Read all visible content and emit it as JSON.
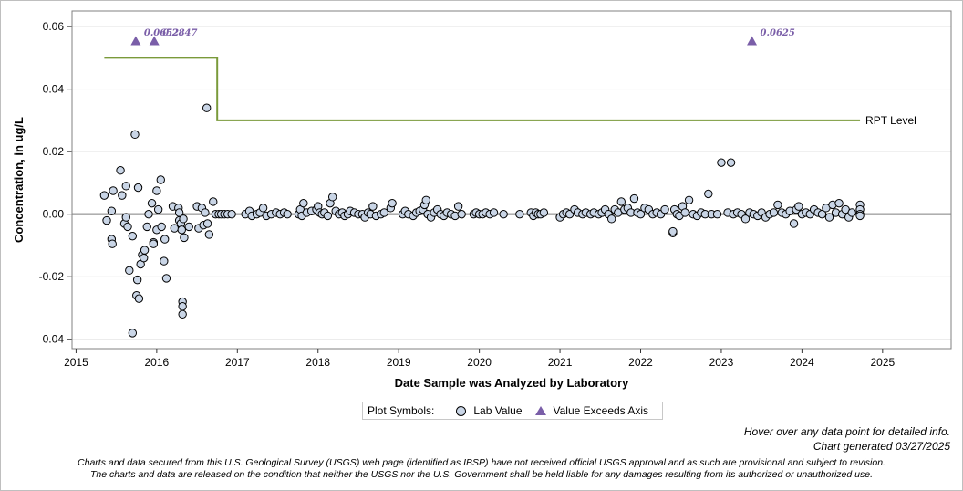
{
  "chart_data": {
    "type": "scatter",
    "xlabel": "Date Sample was Analyzed by Laboratory",
    "ylabel": "Concentration, in ug/L",
    "xlim": [
      2014.95,
      2025.85
    ],
    "ylim": [
      -0.043,
      0.065
    ],
    "x_ticks": [
      "2015",
      "2016",
      "2017",
      "2018",
      "2019",
      "2020",
      "2021",
      "2022",
      "2023",
      "2024",
      "2025"
    ],
    "y_ticks": [
      "0.06",
      "0.04",
      "0.02",
      "0.00",
      "-0.02",
      "-0.04"
    ],
    "y_tick_values": [
      0.06,
      0.04,
      0.02,
      0.0,
      -0.02,
      -0.04
    ],
    "grid": "horizontal",
    "reference_line_y": 0.0,
    "rpt_level": {
      "label": "RPT Level",
      "color": "#7a9a3a",
      "segments": [
        {
          "x": [
            2015.35,
            2016.75
          ],
          "y": 0.05
        },
        {
          "x": [
            2016.75,
            2024.72
          ],
          "y": 0.03
        }
      ]
    },
    "exceeds_axis": {
      "name": "Value Exceeds Axis",
      "color": "#7a5ea8",
      "points": [
        {
          "x": 2015.74,
          "label": "0.0652"
        },
        {
          "x": 2015.97,
          "label": "0.2847"
        },
        {
          "x": 2023.38,
          "label": "0.0625"
        }
      ]
    },
    "lab_values": {
      "name": "Lab Value",
      "color": "#c9d5e6",
      "points": [
        [
          2015.35,
          0.006
        ],
        [
          2015.38,
          -0.002
        ],
        [
          2015.44,
          0.001
        ],
        [
          2015.44,
          -0.008
        ],
        [
          2015.45,
          -0.0095
        ],
        [
          2015.46,
          0.0075
        ],
        [
          2015.55,
          0.014
        ],
        [
          2015.57,
          0.006
        ],
        [
          2015.6,
          -0.003
        ],
        [
          2015.62,
          0.009
        ],
        [
          2015.62,
          -0.001
        ],
        [
          2015.64,
          -0.004
        ],
        [
          2015.66,
          -0.018
        ],
        [
          2015.7,
          -0.038
        ],
        [
          2015.7,
          -0.007
        ],
        [
          2015.73,
          0.0255
        ],
        [
          2015.75,
          -0.026
        ],
        [
          2015.76,
          -0.021
        ],
        [
          2015.77,
          0.0085
        ],
        [
          2015.78,
          -0.027
        ],
        [
          2015.8,
          -0.016
        ],
        [
          2015.82,
          -0.013
        ],
        [
          2015.84,
          -0.014
        ],
        [
          2015.85,
          -0.0115
        ],
        [
          2015.88,
          -0.004
        ],
        [
          2015.9,
          0.0
        ],
        [
          2015.94,
          0.0035
        ],
        [
          2015.96,
          -0.009
        ],
        [
          2015.96,
          -0.0095
        ],
        [
          2016.0,
          0.0075
        ],
        [
          2016.0,
          -0.005
        ],
        [
          2016.02,
          0.0015
        ],
        [
          2016.05,
          0.011
        ],
        [
          2016.06,
          -0.004
        ],
        [
          2016.09,
          -0.015
        ],
        [
          2016.1,
          -0.008
        ],
        [
          2016.12,
          -0.0205
        ],
        [
          2016.2,
          0.0025
        ],
        [
          2016.22,
          -0.0045
        ],
        [
          2016.27,
          0.002
        ],
        [
          2016.28,
          0.0005
        ],
        [
          2016.28,
          -0.002
        ],
        [
          2016.3,
          -0.003
        ],
        [
          2016.31,
          -0.005
        ],
        [
          2016.32,
          -0.028
        ],
        [
          2016.32,
          -0.0295
        ],
        [
          2016.32,
          -0.032
        ],
        [
          2016.33,
          -0.0015
        ],
        [
          2016.34,
          -0.0075
        ],
        [
          2016.4,
          -0.004
        ],
        [
          2016.5,
          0.0025
        ],
        [
          2016.52,
          -0.0045
        ],
        [
          2016.56,
          0.002
        ],
        [
          2016.58,
          -0.0035
        ],
        [
          2016.6,
          0.0005
        ],
        [
          2016.62,
          0.034
        ],
        [
          2016.63,
          -0.003
        ],
        [
          2016.65,
          -0.0065
        ],
        [
          2016.7,
          0.004
        ],
        [
          2016.73,
          0.0
        ],
        [
          2016.77,
          0.0
        ],
        [
          2016.8,
          0.0
        ],
        [
          2016.84,
          0.0
        ],
        [
          2016.88,
          0.0
        ],
        [
          2016.93,
          0.0
        ],
        [
          2017.1,
          0.0
        ],
        [
          2017.15,
          0.001
        ],
        [
          2017.18,
          -0.0005
        ],
        [
          2017.24,
          0.0
        ],
        [
          2017.28,
          0.0005
        ],
        [
          2017.32,
          0.002
        ],
        [
          2017.36,
          -0.0005
        ],
        [
          2017.42,
          0.0
        ],
        [
          2017.48,
          0.0005
        ],
        [
          2017.53,
          0.0
        ],
        [
          2017.58,
          0.0005
        ],
        [
          2017.62,
          0.0
        ],
        [
          2017.76,
          0.0
        ],
        [
          2017.78,
          0.0015
        ],
        [
          2017.8,
          -0.0005
        ],
        [
          2017.82,
          0.0035
        ],
        [
          2017.86,
          0.0005
        ],
        [
          2017.92,
          0.001
        ],
        [
          2017.98,
          0.0015
        ],
        [
          2018.0,
          0.0025
        ],
        [
          2018.02,
          0.0005
        ],
        [
          2018.05,
          0.0
        ],
        [
          2018.08,
          0.0005
        ],
        [
          2018.12,
          -0.0005
        ],
        [
          2018.15,
          0.0035
        ],
        [
          2018.18,
          0.0055
        ],
        [
          2018.22,
          0.001
        ],
        [
          2018.26,
          0.0
        ],
        [
          2018.3,
          0.0005
        ],
        [
          2018.33,
          -0.0005
        ],
        [
          2018.37,
          0.0
        ],
        [
          2018.4,
          0.001
        ],
        [
          2018.45,
          0.0005
        ],
        [
          2018.5,
          0.0
        ],
        [
          2018.55,
          0.0
        ],
        [
          2018.58,
          -0.001
        ],
        [
          2018.62,
          0.0005
        ],
        [
          2018.65,
          0.0
        ],
        [
          2018.68,
          0.0025
        ],
        [
          2018.72,
          -0.0005
        ],
        [
          2018.78,
          0.0
        ],
        [
          2018.82,
          0.0005
        ],
        [
          2018.9,
          0.002
        ],
        [
          2018.92,
          0.0035
        ],
        [
          2019.05,
          0.0
        ],
        [
          2019.08,
          0.001
        ],
        [
          2019.12,
          0.0
        ],
        [
          2019.18,
          -0.0005
        ],
        [
          2019.22,
          0.0005
        ],
        [
          2019.26,
          0.001
        ],
        [
          2019.3,
          0.0015
        ],
        [
          2019.32,
          0.003
        ],
        [
          2019.34,
          0.0045
        ],
        [
          2019.36,
          0.0
        ],
        [
          2019.4,
          -0.001
        ],
        [
          2019.44,
          0.0005
        ],
        [
          2019.48,
          0.0015
        ],
        [
          2019.52,
          0.0
        ],
        [
          2019.56,
          -0.0005
        ],
        [
          2019.6,
          0.0005
        ],
        [
          2019.65,
          0.0
        ],
        [
          2019.7,
          -0.0005
        ],
        [
          2019.74,
          0.0025
        ],
        [
          2019.78,
          0.0
        ],
        [
          2019.93,
          0.0
        ],
        [
          2019.96,
          0.0005
        ],
        [
          2020.0,
          0.0
        ],
        [
          2020.04,
          0.0
        ],
        [
          2020.08,
          0.0005
        ],
        [
          2020.13,
          0.0
        ],
        [
          2020.18,
          0.0005
        ],
        [
          2020.3,
          0.0
        ],
        [
          2020.5,
          0.0
        ],
        [
          2020.64,
          0.0005
        ],
        [
          2020.67,
          -0.0005
        ],
        [
          2020.7,
          0.0005
        ],
        [
          2020.73,
          0.0
        ],
        [
          2020.76,
          0.0
        ],
        [
          2020.8,
          0.0005
        ],
        [
          2021.0,
          -0.001
        ],
        [
          2021.04,
          0.0
        ],
        [
          2021.08,
          0.0005
        ],
        [
          2021.12,
          0.0
        ],
        [
          2021.18,
          0.0015
        ],
        [
          2021.22,
          0.0005
        ],
        [
          2021.28,
          0.0
        ],
        [
          2021.32,
          0.0005
        ],
        [
          2021.38,
          0.0
        ],
        [
          2021.42,
          0.0005
        ],
        [
          2021.48,
          0.0
        ],
        [
          2021.52,
          0.0005
        ],
        [
          2021.56,
          0.0015
        ],
        [
          2021.6,
          0.0
        ],
        [
          2021.64,
          -0.0015
        ],
        [
          2021.68,
          0.0015
        ],
        [
          2021.72,
          0.0005
        ],
        [
          2021.76,
          0.004
        ],
        [
          2021.8,
          0.0015
        ],
        [
          2021.84,
          0.002
        ],
        [
          2021.88,
          0.0005
        ],
        [
          2021.92,
          0.005
        ],
        [
          2021.96,
          0.0005
        ],
        [
          2022.0,
          0.0
        ],
        [
          2022.05,
          0.002
        ],
        [
          2022.1,
          0.0015
        ],
        [
          2022.15,
          0.0
        ],
        [
          2022.2,
          0.0005
        ],
        [
          2022.25,
          0.0
        ],
        [
          2022.3,
          0.0015
        ],
        [
          2022.4,
          -0.006
        ],
        [
          2022.4,
          -0.0055
        ],
        [
          2022.42,
          0.0015
        ],
        [
          2022.45,
          0.0
        ],
        [
          2022.48,
          -0.0005
        ],
        [
          2022.52,
          0.0025
        ],
        [
          2022.55,
          0.0005
        ],
        [
          2022.6,
          0.0045
        ],
        [
          2022.65,
          0.0
        ],
        [
          2022.7,
          -0.0005
        ],
        [
          2022.75,
          0.0005
        ],
        [
          2022.8,
          0.0
        ],
        [
          2022.84,
          0.0065
        ],
        [
          2022.88,
          0.0
        ],
        [
          2022.95,
          0.0
        ],
        [
          2023.0,
          0.0165
        ],
        [
          2023.08,
          0.0005
        ],
        [
          2023.12,
          0.0165
        ],
        [
          2023.15,
          0.0
        ],
        [
          2023.2,
          0.0005
        ],
        [
          2023.25,
          0.0
        ],
        [
          2023.3,
          -0.0015
        ],
        [
          2023.35,
          0.0005
        ],
        [
          2023.4,
          0.0
        ],
        [
          2023.45,
          -0.0005
        ],
        [
          2023.5,
          0.0005
        ],
        [
          2023.55,
          -0.001
        ],
        [
          2023.6,
          0.0
        ],
        [
          2023.65,
          0.0005
        ],
        [
          2023.7,
          0.003
        ],
        [
          2023.75,
          0.0005
        ],
        [
          2023.8,
          0.0
        ],
        [
          2023.85,
          0.001
        ],
        [
          2023.9,
          -0.003
        ],
        [
          2023.93,
          0.0015
        ],
        [
          2023.96,
          0.0025
        ],
        [
          2024.0,
          0.0
        ],
        [
          2024.05,
          0.0005
        ],
        [
          2024.1,
          0.0
        ],
        [
          2024.15,
          0.0015
        ],
        [
          2024.2,
          0.0005
        ],
        [
          2024.25,
          0.0
        ],
        [
          2024.3,
          0.002
        ],
        [
          2024.34,
          -0.001
        ],
        [
          2024.38,
          0.003
        ],
        [
          2024.42,
          0.0005
        ],
        [
          2024.46,
          0.0035
        ],
        [
          2024.5,
          0.0
        ],
        [
          2024.54,
          0.0015
        ],
        [
          2024.58,
          -0.001
        ],
        [
          2024.62,
          0.0005
        ],
        [
          2024.72,
          0.003
        ],
        [
          2024.72,
          0.0015
        ],
        [
          2024.72,
          0.0
        ],
        [
          2024.72,
          -0.0005
        ]
      ]
    }
  },
  "legend": {
    "title": "Plot Symbols:",
    "lab_value": "Lab Value",
    "exceeds_axis": "Value Exceeds Axis"
  },
  "notes": {
    "hover": "Hover over any data point for detailed info.",
    "generated": "Chart generated 03/27/2025"
  },
  "disclaimer": {
    "line1": "Charts and data secured from this U.S. Geological Survey (USGS) web page (identified as IBSP) have not received official USGS approval and as such are provisional and subject to revision.",
    "line2": "The charts and data are released on the condition that neither the USGS nor the U.S. Government shall be held liable for any damages resulting from its authorized or unauthorized use."
  }
}
